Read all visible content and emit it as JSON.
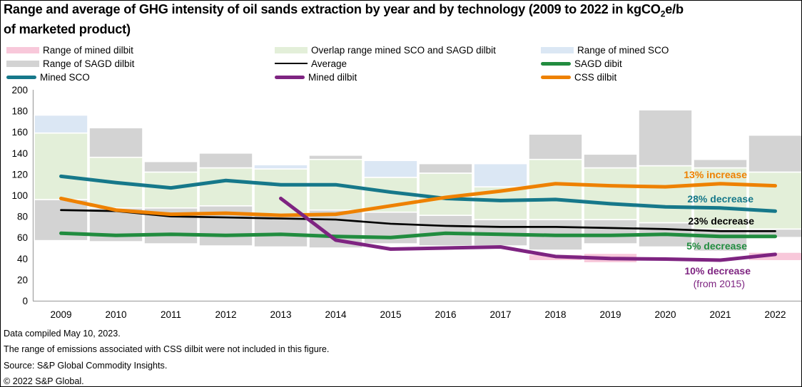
{
  "title": {
    "line1_pre": "Range and average of GHG intensity of oil sands extraction by year and by technology (2009 to 2022 in kgCO",
    "line1_sub": "2",
    "line1_post": "e/b",
    "line2": "of marketed product)"
  },
  "colors": {
    "range_pink": "#f8c8da",
    "range_gray": "#d3d3d3",
    "range_green": "#e3efd9",
    "range_blue": "#dbe7f4",
    "teal": "#16788a",
    "orange": "#ee8100",
    "green": "#218c3f",
    "purple": "#7e2481",
    "black": "#000000",
    "axis": "#a6a6a6"
  },
  "legend": {
    "items": [
      {
        "label": "Range of mined dilbit",
        "color": "range_pink",
        "kind": "band"
      },
      {
        "label": "Range of SAGD dilbit",
        "color": "range_gray",
        "kind": "band"
      },
      {
        "label": "Mined SCO",
        "color": "teal",
        "kind": "line-thick"
      },
      {
        "label": "Overlap range mined SCO and SAGD dilbit",
        "color": "range_green",
        "kind": "band"
      },
      {
        "label": "Average",
        "color": "black",
        "kind": "line-thin"
      },
      {
        "label": "Mined dilbit",
        "color": "purple",
        "kind": "line-thick"
      },
      {
        "label": "Range of mined SCO",
        "color": "range_blue",
        "kind": "band"
      },
      {
        "label": "SAGD dibit",
        "color": "green",
        "kind": "line-thick"
      },
      {
        "label": "CSS dilbit",
        "color": "orange",
        "kind": "line-thick"
      }
    ]
  },
  "chart_data": {
    "type": "combo-range-columns-and-lines",
    "title": "Range and average of GHG intensity of oil sands extraction by year and by technology (2009 to 2022 in kgCO2e/b of marketed product)",
    "x_categories": [
      "2009",
      "2010",
      "2011",
      "2012",
      "2013",
      "2014",
      "2015",
      "2016",
      "2017",
      "2018",
      "2019",
      "2020",
      "2021",
      "2022"
    ],
    "y_axis": {
      "min": 0,
      "max": 200,
      "step": 20
    },
    "grid": false,
    "legend_position": "top",
    "bands": [
      {
        "year": "2009",
        "segments": [
          {
            "range": "sagd-dilbit",
            "color": "range_gray",
            "lo": 57,
            "hi": 96
          },
          {
            "range": "overlap",
            "color": "range_green",
            "lo": 96,
            "hi": 159
          },
          {
            "range": "mined-sco",
            "color": "range_blue",
            "lo": 159,
            "hi": 176
          }
        ]
      },
      {
        "year": "2010",
        "segments": [
          {
            "range": "sagd-dilbit",
            "color": "range_gray",
            "lo": 56,
            "hi": 88
          },
          {
            "range": "overlap",
            "color": "range_green",
            "lo": 88,
            "hi": 136
          },
          {
            "range": "sagd-dilbit",
            "color": "range_gray",
            "lo": 136,
            "hi": 164
          }
        ]
      },
      {
        "year": "2011",
        "segments": [
          {
            "range": "sagd-dilbit",
            "color": "range_gray",
            "lo": 54,
            "hi": 88
          },
          {
            "range": "overlap",
            "color": "range_green",
            "lo": 88,
            "hi": 122
          },
          {
            "range": "sagd-dilbit",
            "color": "range_gray",
            "lo": 122,
            "hi": 132
          }
        ]
      },
      {
        "year": "2012",
        "segments": [
          {
            "range": "sagd-dilbit",
            "color": "range_gray",
            "lo": 52,
            "hi": 90
          },
          {
            "range": "overlap",
            "color": "range_green",
            "lo": 90,
            "hi": 126
          },
          {
            "range": "sagd-dilbit",
            "color": "range_gray",
            "lo": 126,
            "hi": 140
          }
        ]
      },
      {
        "year": "2013",
        "segments": [
          {
            "range": "sagd-dilbit",
            "color": "range_gray",
            "lo": 51,
            "hi": 82
          },
          {
            "range": "overlap",
            "color": "range_green",
            "lo": 82,
            "hi": 125
          },
          {
            "range": "mined-sco",
            "color": "range_blue",
            "lo": 125,
            "hi": 129
          }
        ]
      },
      {
        "year": "2014",
        "segments": [
          {
            "range": "sagd-dilbit",
            "color": "range_gray",
            "lo": 50,
            "hi": 86
          },
          {
            "range": "overlap",
            "color": "range_green",
            "lo": 86,
            "hi": 134
          },
          {
            "range": "sagd-dilbit",
            "color": "range_gray",
            "lo": 134,
            "hi": 138
          }
        ]
      },
      {
        "year": "2015",
        "segments": [
          {
            "range": "sagd-dilbit",
            "color": "range_gray",
            "lo": 54,
            "hi": 84
          },
          {
            "range": "overlap",
            "color": "range_green",
            "lo": 84,
            "hi": 117
          },
          {
            "range": "mined-sco",
            "color": "range_blue",
            "lo": 117,
            "hi": 133
          }
        ]
      },
      {
        "year": "2016",
        "segments": [
          {
            "range": "sagd-dilbit",
            "color": "range_gray",
            "lo": 52,
            "hi": 81
          },
          {
            "range": "overlap",
            "color": "range_green",
            "lo": 81,
            "hi": 121
          },
          {
            "range": "sagd-dilbit",
            "color": "range_gray",
            "lo": 121,
            "hi": 130
          }
        ]
      },
      {
        "year": "2017",
        "segments": [
          {
            "range": "sagd-dilbit",
            "color": "range_gray",
            "lo": 52,
            "hi": 77
          },
          {
            "range": "overlap",
            "color": "range_green",
            "lo": 77,
            "hi": 108
          },
          {
            "range": "mined-sco",
            "color": "range_blue",
            "lo": 108,
            "hi": 130
          }
        ]
      },
      {
        "year": "2018",
        "segments": [
          {
            "range": "mined-dilbit",
            "color": "range_pink",
            "lo": 38,
            "hi": 44
          },
          {
            "range": "sagd-dilbit",
            "color": "range_gray",
            "lo": 48,
            "hi": 77
          },
          {
            "range": "overlap",
            "color": "range_green",
            "lo": 77,
            "hi": 134
          },
          {
            "range": "sagd-dilbit",
            "color": "range_gray",
            "lo": 134,
            "hi": 158
          }
        ]
      },
      {
        "year": "2019",
        "segments": [
          {
            "range": "mined-dilbit",
            "color": "range_pink",
            "lo": 36,
            "hi": 45
          },
          {
            "range": "sagd-dilbit",
            "color": "range_gray",
            "lo": 54,
            "hi": 77
          },
          {
            "range": "overlap",
            "color": "range_green",
            "lo": 77,
            "hi": 126
          },
          {
            "range": "sagd-dilbit",
            "color": "range_gray",
            "lo": 126,
            "hi": 139
          }
        ]
      },
      {
        "year": "2020",
        "segments": [
          {
            "range": "sagd-dilbit",
            "color": "range_gray",
            "lo": 51,
            "hi": 74
          },
          {
            "range": "overlap",
            "color": "range_green",
            "lo": 74,
            "hi": 128
          },
          {
            "range": "sagd-dilbit",
            "color": "range_gray",
            "lo": 128,
            "hi": 181
          }
        ]
      },
      {
        "year": "2021",
        "segments": [
          {
            "range": "sagd-dilbit",
            "color": "range_gray",
            "lo": 47,
            "hi": 68
          },
          {
            "range": "overlap",
            "color": "range_green",
            "lo": 68,
            "hi": 126
          },
          {
            "range": "sagd-dilbit",
            "color": "range_gray",
            "lo": 126,
            "hi": 134
          }
        ]
      },
      {
        "year": "2022",
        "segments": [
          {
            "range": "mined-dilbit",
            "color": "range_pink",
            "lo": 38,
            "hi": 46
          },
          {
            "range": "sagd-dilbit",
            "color": "range_gray",
            "lo": 60,
            "hi": 68
          },
          {
            "range": "overlap",
            "color": "range_green",
            "lo": 68,
            "hi": 122
          },
          {
            "range": "sagd-dilbit",
            "color": "range_gray",
            "lo": 122,
            "hi": 157
          }
        ]
      }
    ],
    "series": [
      {
        "name": "Average",
        "color": "black",
        "width": 2.7,
        "start_index": 0,
        "values": [
          86,
          85,
          80,
          79,
          78,
          77,
          73,
          71,
          70,
          70,
          69,
          68,
          66,
          66
        ]
      },
      {
        "name": "Mined SCO",
        "color": "teal",
        "width": 5,
        "start_index": 0,
        "values": [
          118,
          112,
          107,
          114,
          110,
          110,
          103,
          97,
          95,
          96,
          92,
          89,
          88,
          85
        ]
      },
      {
        "name": "SAGD dibit",
        "color": "green",
        "width": 5,
        "start_index": 0,
        "values": [
          64,
          62,
          63,
          62,
          63,
          61,
          60,
          64,
          63,
          62,
          62,
          63,
          61,
          61
        ]
      },
      {
        "name": "CSS dilbit",
        "color": "orange",
        "width": 5,
        "start_index": 0,
        "values": [
          97,
          86,
          82,
          83,
          81,
          82,
          90,
          98,
          104,
          111,
          109,
          108,
          111,
          109
        ]
      },
      {
        "name": "Mined dilbit",
        "color": "purple",
        "width": 5,
        "start_index": 4,
        "values": [
          97,
          57.5,
          49,
          50,
          51,
          42,
          40,
          39.5,
          38.5,
          44
        ]
      }
    ],
    "annotations": [
      {
        "text": "13% increase",
        "color": "orange",
        "series": "CSS dilbit"
      },
      {
        "text": "28% decrease",
        "color": "teal",
        "series": "Mined SCO"
      },
      {
        "text": "23% decrease",
        "color": "black",
        "series": "Average"
      },
      {
        "text": "5% decrease",
        "color": "green",
        "series": "SAGD dibit"
      },
      {
        "text": "10% decrease",
        "color": "purple",
        "series": "Mined dilbit"
      },
      {
        "text": "(from 2015)",
        "color": "purple",
        "series": "Mined dilbit"
      }
    ]
  },
  "footer": {
    "lines": [
      "Data compiled May 10, 2023.",
      "The range of emissions associated with CSS dilbit were not included in this figure.",
      "Source: S&P Global Commodity Insights.",
      "© 2022 S&P Global."
    ]
  }
}
